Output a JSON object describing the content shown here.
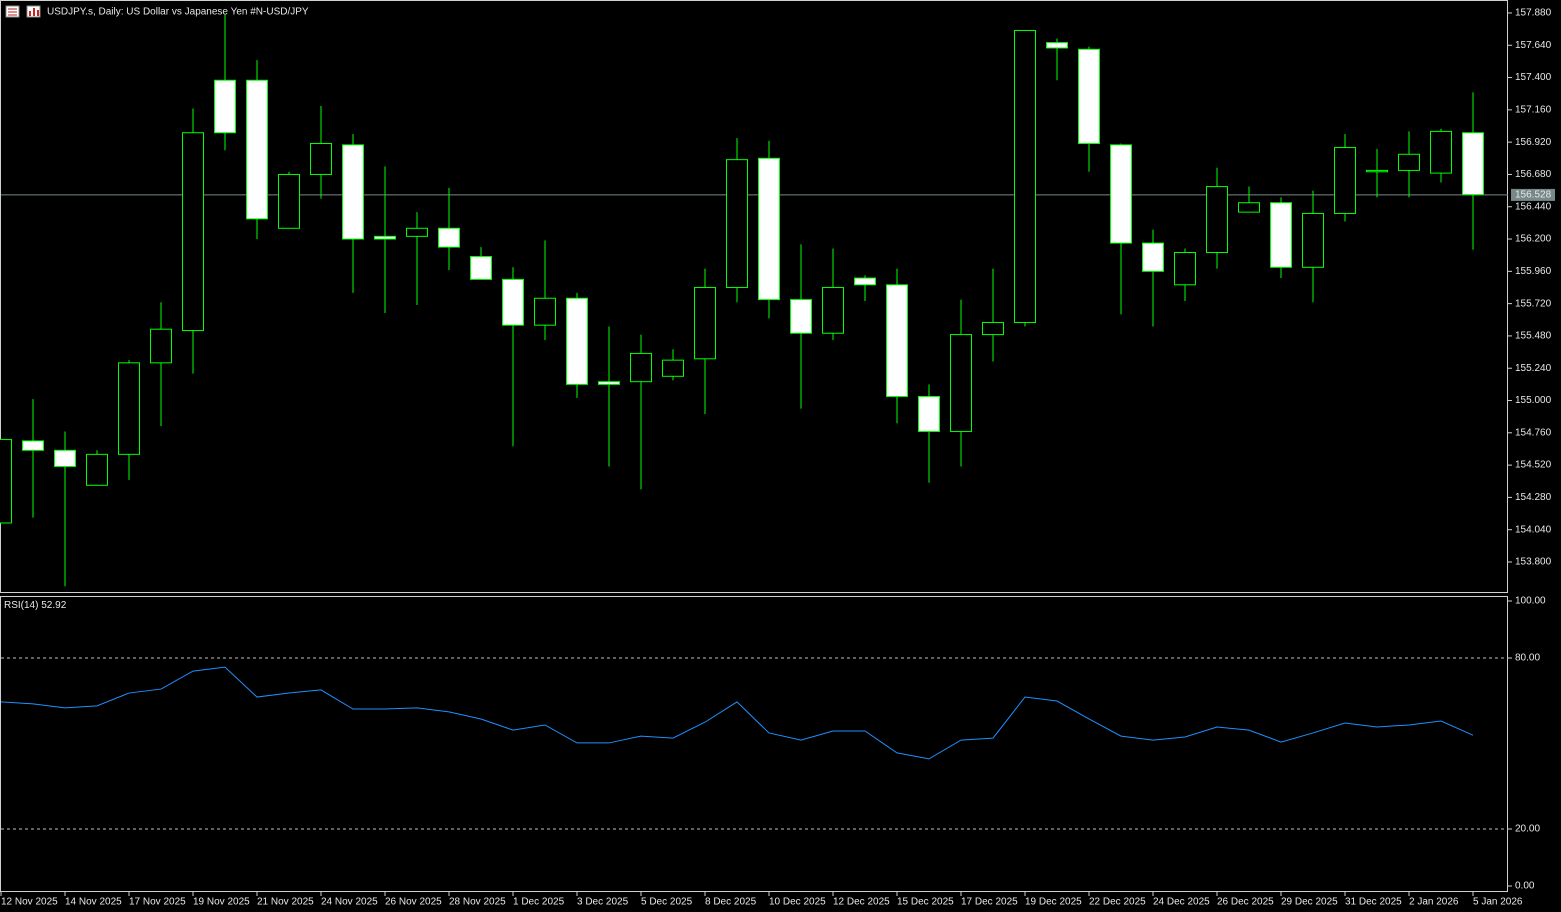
{
  "chart_data": [
    {
      "type": "candlestick",
      "title": "USDJPY.s, Daily:  US Dollar vs  Japanese Yen #N-USD/JPY",
      "categories": [
        "12 Nov 2025",
        null,
        "14 Nov 2025",
        null,
        "17 Nov 2025",
        null,
        "19 Nov 2025",
        null,
        "21 Nov 2025",
        null,
        "24 Nov 2025",
        null,
        "26 Nov 2025",
        null,
        "28 Nov 2025",
        null,
        "1 Dec 2025",
        null,
        "3 Dec 2025",
        null,
        "5 Dec 2025",
        null,
        "8 Dec 2025",
        null,
        "10 Dec 2025",
        null,
        "12 Dec 2025",
        null,
        "15 Dec 2025",
        null,
        "17 Dec 2025",
        null,
        "19 Dec 2025",
        null,
        "22 Dec 2025",
        null,
        "24 Dec 2025",
        null,
        "26 Dec 2025",
        null,
        "29 Dec 2025",
        null,
        "31 Dec 2025",
        null,
        "2 Jan 2026",
        null,
        "5 Jan 2026"
      ],
      "open": [
        154.09,
        154.7,
        154.63,
        154.37,
        154.6,
        155.28,
        155.52,
        157.38,
        157.38,
        156.28,
        156.68,
        156.9,
        156.22,
        156.22,
        156.28,
        156.07,
        155.9,
        155.56,
        155.76,
        155.14,
        155.14,
        155.18,
        155.31,
        155.84,
        156.8,
        155.75,
        155.5,
        155.91,
        155.86,
        155.03,
        154.77,
        155.49,
        155.58,
        157.66,
        157.61,
        156.9,
        156.17,
        155.86,
        156.1,
        156.4,
        156.47,
        155.99,
        156.39,
        156.7,
        156.71,
        156.69,
        156.99
      ],
      "high": [
        154.71,
        155.01,
        154.77,
        154.63,
        155.3,
        155.73,
        157.17,
        157.87,
        157.53,
        156.7,
        157.19,
        156.98,
        156.74,
        156.4,
        156.58,
        156.14,
        155.99,
        156.19,
        155.8,
        155.55,
        155.49,
        155.38,
        155.98,
        156.95,
        156.93,
        156.16,
        156.13,
        155.93,
        155.98,
        155.12,
        155.75,
        155.98,
        157.75,
        157.69,
        157.63,
        156.91,
        156.27,
        156.13,
        156.73,
        156.59,
        156.51,
        156.56,
        156.98,
        156.87,
        157.0,
        157.02,
        157.29
      ],
      "low": [
        154.09,
        154.13,
        153.62,
        154.37,
        154.41,
        154.81,
        155.2,
        156.86,
        156.2,
        156.28,
        156.5,
        155.8,
        155.65,
        155.71,
        155.97,
        155.9,
        154.66,
        155.45,
        155.02,
        154.51,
        154.34,
        155.15,
        154.9,
        155.73,
        155.61,
        154.94,
        155.45,
        155.74,
        154.83,
        154.39,
        154.51,
        155.29,
        155.55,
        157.38,
        156.7,
        155.64,
        155.55,
        155.74,
        155.98,
        156.4,
        155.91,
        155.73,
        156.33,
        156.51,
        156.51,
        156.62,
        156.12
      ],
      "close": [
        154.71,
        154.63,
        154.51,
        154.6,
        155.28,
        155.53,
        156.99,
        156.99,
        156.35,
        156.68,
        156.91,
        156.2,
        156.2,
        156.28,
        156.14,
        155.9,
        155.56,
        155.76,
        155.12,
        155.12,
        155.35,
        155.3,
        155.84,
        156.79,
        155.75,
        155.5,
        155.84,
        155.86,
        155.03,
        154.77,
        155.49,
        155.58,
        157.75,
        157.62,
        156.91,
        156.17,
        155.96,
        156.1,
        156.59,
        156.47,
        155.99,
        156.39,
        156.88,
        156.71,
        156.83,
        157.0,
        156.53
      ],
      "up_color": "#000000",
      "down_color": "#ffffff",
      "outline_color": "#00ff00",
      "current_price": 156.528,
      "current_price_color": "#778888",
      "ylim": [
        153.577,
        157.969
      ],
      "yticks": [
        {
          "value": 157.88,
          "label": "157.880"
        },
        {
          "value": 157.64,
          "label": "157.640"
        },
        {
          "value": 157.4,
          "label": "157.400"
        },
        {
          "value": 157.16,
          "label": "157.160"
        },
        {
          "value": 156.92,
          "label": "156.920"
        },
        {
          "value": 156.68,
          "label": "156.680"
        },
        {
          "value": 156.44,
          "label": "156.440"
        },
        {
          "value": 156.2,
          "label": "156.200"
        },
        {
          "value": 155.96,
          "label": "155.960"
        },
        {
          "value": 155.72,
          "label": "155.720"
        },
        {
          "value": 155.48,
          "label": "155.480"
        },
        {
          "value": 155.24,
          "label": "155.240"
        },
        {
          "value": 155.0,
          "label": "155.000"
        },
        {
          "value": 154.76,
          "label": "154.760"
        },
        {
          "value": 154.52,
          "label": "154.520"
        },
        {
          "value": 154.28,
          "label": "154.280"
        },
        {
          "value": 154.04,
          "label": "154.040"
        },
        {
          "value": 153.8,
          "label": "153.800"
        }
      ]
    },
    {
      "type": "line",
      "name": "RSI(14)",
      "color": "#1e90ff",
      "values": [
        64.6,
        63.9,
        62.5,
        63.2,
        67.7,
        69.1,
        75.4,
        76.8,
        66.3,
        67.7,
        68.8,
        62.1,
        62.1,
        62.5,
        61.1,
        58.6,
        54.7,
        56.5,
        50.2,
        50.2,
        52.6,
        51.9,
        57.5,
        64.6,
        53.7,
        51.2,
        54.4,
        54.4,
        46.7,
        44.6,
        51.2,
        51.9,
        66.3,
        64.9,
        58.6,
        52.6,
        51.2,
        52.3,
        55.8,
        54.7,
        50.5,
        53.7,
        57.2,
        55.8,
        56.5,
        57.9,
        52.92
      ],
      "ylim": [
        0,
        100
      ],
      "yticks": [
        {
          "value": 100,
          "label": "100.00"
        },
        {
          "value": 80,
          "label": "80.00"
        },
        {
          "value": 20,
          "label": "20.00"
        },
        {
          "value": 0,
          "label": "0.00"
        }
      ],
      "levels": [
        80,
        20
      ]
    }
  ]
}
